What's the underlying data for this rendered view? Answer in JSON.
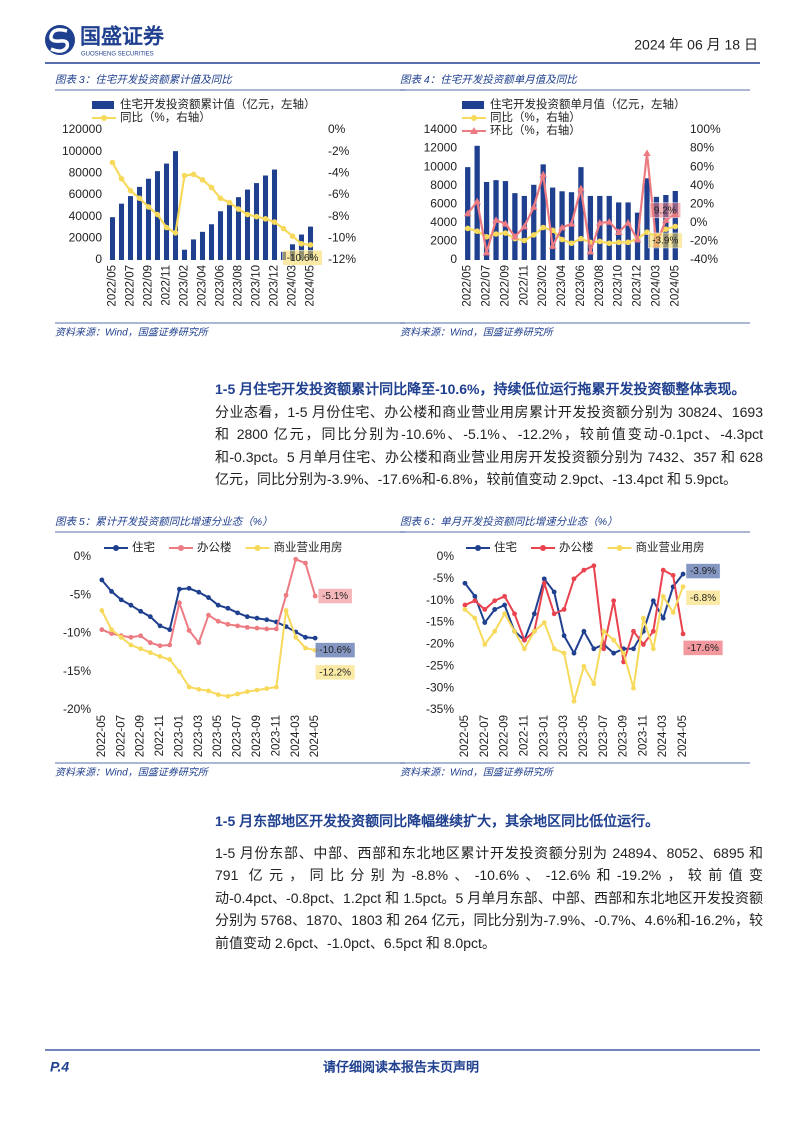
{
  "header": {
    "logo_cn": "国盛证券",
    "logo_en": "GUOSHENG SECURITIES",
    "date": "2024 年 06 月 18 日"
  },
  "chart_data": [
    {
      "type": "combo",
      "caption": "图表 3：住宅开发投资额累计值及同比",
      "source": "资料来源：Wind，国盛证券研究所",
      "legend": "top-left",
      "grid": false,
      "categories": [
        "2022/05",
        null,
        "2022/07",
        null,
        "2022/09",
        null,
        "2022/11",
        null,
        "2023/02",
        null,
        "2023/04",
        null,
        "2023/06",
        null,
        "2023/08",
        null,
        "2023/10",
        null,
        "2023/12",
        null,
        "2024/03",
        null,
        "2024/05"
      ],
      "ylim": [
        0,
        120000
      ],
      "yticks": [
        0,
        20000,
        40000,
        60000,
        80000,
        100000,
        120000
      ],
      "y2lim": [
        -12,
        0
      ],
      "y2ticks": [
        {
          "value": 0,
          "label": "0%"
        },
        {
          "value": -2,
          "label": "-2%"
        },
        {
          "value": -4,
          "label": "-4%"
        },
        {
          "value": -6,
          "label": "-6%"
        },
        {
          "value": -8,
          "label": "-8%"
        },
        {
          "value": -10,
          "label": "-10%"
        },
        {
          "value": -12,
          "label": "-12%"
        }
      ],
      "series": [
        {
          "name": "住宅开发投资额累计值（亿元，左轴）",
          "type": "bar",
          "color": "#1f3f8f",
          "values": [
            39500,
            52000,
            59000,
            67500,
            75000,
            82000,
            89000,
            100500,
            9500,
            19000,
            26000,
            33000,
            45000,
            51000,
            58000,
            65000,
            71000,
            78000,
            83500,
            7500,
            14500,
            23500,
            30824
          ]
        },
        {
          "name": "同比（%，右轴）",
          "type": "line",
          "axis": "y2",
          "marker": "circle",
          "color": "#f7d95c",
          "values": [
            -3.0,
            -4.5,
            -5.6,
            -6.3,
            -7.1,
            -7.8,
            -9.0,
            -9.5,
            -4.2,
            -4.1,
            -4.6,
            -5.3,
            -6.3,
            -6.7,
            -7.3,
            -7.8,
            -8.0,
            -8.2,
            -8.5,
            -9.1,
            -9.8,
            -10.5,
            -10.6
          ],
          "value_labels": [
            null,
            null,
            null,
            null,
            null,
            null,
            null,
            null,
            null,
            null,
            null,
            null,
            null,
            null,
            null,
            null,
            null,
            null,
            null,
            null,
            null,
            null,
            "-10.6%"
          ]
        }
      ]
    },
    {
      "type": "combo",
      "caption": "图表 4：住宅开发投资额单月值及同比",
      "source": "资料来源：Wind，国盛证券研究所",
      "legend": "top-left",
      "grid": false,
      "categories": [
        "2022/05",
        null,
        "2022/07",
        null,
        "2022/09",
        null,
        "2022/11",
        null,
        "2023/02",
        null,
        "2023/04",
        null,
        "2023/06",
        null,
        "2023/08",
        null,
        "2023/10",
        null,
        "2023/12",
        null,
        "2024/03",
        null,
        "2024/05"
      ],
      "ylim": [
        0,
        14000
      ],
      "yticks": [
        0,
        2000,
        4000,
        6000,
        8000,
        10000,
        12000,
        14000
      ],
      "y2lim": [
        -40,
        100
      ],
      "y2ticks": [
        {
          "value": -40,
          "label": "-40%"
        },
        {
          "value": -20,
          "label": "-20%"
        },
        {
          "value": 0,
          "label": "0%"
        },
        {
          "value": 20,
          "label": "20%"
        },
        {
          "value": 40,
          "label": "40%"
        },
        {
          "value": 60,
          "label": "60%"
        },
        {
          "value": 80,
          "label": "80%"
        },
        {
          "value": 100,
          "label": "100%"
        }
      ],
      "series": [
        {
          "name": "住宅开发投资额单月值（亿元，左轴）",
          "type": "bar",
          "color": "#1f3f8f",
          "values": [
            10000,
            12300,
            8400,
            8600,
            8500,
            7200,
            6900,
            8100,
            10300,
            7800,
            7400,
            7300,
            10000,
            6900,
            6900,
            6900,
            6200,
            6200,
            5100,
            8800,
            6800,
            7000,
            7432
          ]
        },
        {
          "name": "同比（%，右轴）",
          "type": "line",
          "axis": "y2",
          "marker": "circle",
          "color": "#f7d95c",
          "values": [
            -6,
            -9,
            -15,
            -12,
            -11,
            -17,
            -19,
            -13,
            -5,
            -8,
            -18,
            -22,
            -17,
            -21,
            -20,
            -22,
            -21,
            -21,
            -17,
            -10,
            -14,
            -6.8,
            -3.9
          ],
          "value_labels": [
            null,
            null,
            null,
            null,
            null,
            null,
            null,
            null,
            null,
            null,
            null,
            null,
            null,
            null,
            null,
            null,
            null,
            null,
            null,
            null,
            null,
            null,
            "-3.9%"
          ]
        },
        {
          "name": "环比（%，右轴）",
          "type": "line",
          "axis": "y2",
          "marker": "triangle",
          "color": "#ec7b82",
          "values": [
            10,
            23,
            -32,
            3,
            -1,
            -15,
            -4,
            17,
            52,
            -25,
            -5,
            -1,
            37,
            -31,
            0,
            1,
            -10,
            0,
            -18,
            75,
            -23,
            3,
            9.2
          ],
          "value_labels": [
            null,
            null,
            null,
            null,
            null,
            null,
            null,
            null,
            null,
            null,
            null,
            null,
            null,
            null,
            null,
            null,
            null,
            null,
            null,
            null,
            null,
            null,
            "9.2%"
          ]
        }
      ]
    },
    {
      "type": "line",
      "caption": "图表 5：累计开发投资额同比增速分业态（%）",
      "source": "资料来源：Wind，国盛证券研究所",
      "legend": "top",
      "grid": false,
      "categories": [
        "2022-05",
        null,
        "2022-07",
        null,
        "2022-09",
        null,
        "2022-11",
        null,
        "2023-01",
        null,
        "2023-03",
        null,
        "2023-05",
        null,
        "2023-07",
        null,
        "2023-09",
        null,
        "2023-11",
        null,
        "2024-03",
        null,
        "2024-05"
      ],
      "ylim": [
        -20,
        0
      ],
      "yticks": [
        {
          "value": 0,
          "label": "0%"
        },
        {
          "value": -5,
          "label": "-5%"
        },
        {
          "value": -10,
          "label": "-10%"
        },
        {
          "value": -15,
          "label": "-15%"
        },
        {
          "value": -20,
          "label": "-20%"
        }
      ],
      "series": [
        {
          "name": "住宅",
          "type": "line",
          "marker": "circle",
          "color": "#1f3f8f",
          "values": [
            -3.0,
            -4.5,
            -5.6,
            -6.3,
            -7.1,
            -7.8,
            -9.0,
            -9.5,
            -4.2,
            -4.1,
            -4.6,
            -5.3,
            -6.3,
            -6.7,
            -7.3,
            -7.8,
            -8.0,
            -8.2,
            -8.5,
            -9.1,
            -9.8,
            -10.5,
            -10.6
          ],
          "value_labels": [
            null,
            null,
            null,
            null,
            null,
            null,
            null,
            null,
            null,
            null,
            null,
            null,
            null,
            null,
            null,
            null,
            null,
            null,
            null,
            null,
            null,
            null,
            "-10.6%"
          ]
        },
        {
          "name": "办公楼",
          "type": "line",
          "marker": "circle",
          "color": "#ec7b82",
          "values": [
            -9.5,
            -10,
            -10.3,
            -10.5,
            -10.3,
            -11.2,
            -11.6,
            -11.5,
            -6.0,
            -9.6,
            -11.2,
            -7.6,
            -8.4,
            -8.8,
            -9.0,
            -9.2,
            -9.3,
            -9.4,
            -9.4,
            -5.0,
            -0.3,
            -0.8,
            -5.1
          ],
          "value_labels": [
            null,
            null,
            null,
            null,
            null,
            null,
            null,
            null,
            null,
            null,
            null,
            null,
            null,
            null,
            null,
            null,
            null,
            null,
            null,
            null,
            null,
            null,
            "-5.1%"
          ]
        },
        {
          "name": "商业营业用房",
          "type": "line",
          "marker": "circle",
          "color": "#f7d95c",
          "values": [
            -7,
            -9.5,
            -10.5,
            -11.5,
            -12,
            -12.5,
            -13,
            -13.4,
            -15,
            -17,
            -17.3,
            -17.5,
            -18,
            -18.2,
            -17.9,
            -17.6,
            -17.4,
            -17.2,
            -17.0,
            -7.0,
            -10.5,
            -11.9,
            -12.2
          ],
          "value_labels": [
            null,
            null,
            null,
            null,
            null,
            null,
            null,
            null,
            null,
            null,
            null,
            null,
            null,
            null,
            null,
            null,
            null,
            null,
            null,
            null,
            null,
            null,
            "-12.2%"
          ]
        }
      ]
    },
    {
      "type": "line",
      "caption": "图表 6：单月开发投资额同比增速分业态（%）",
      "source": "资料来源：Wind，国盛证券研究所",
      "legend": "top",
      "grid": false,
      "categories": [
        "2022-05",
        null,
        "2022-07",
        null,
        "2022-09",
        null,
        "2022-11",
        null,
        "2023-01",
        null,
        "2023-03",
        null,
        "2023-05",
        null,
        "2023-07",
        null,
        "2023-09",
        null,
        "2023-11",
        null,
        "2024-03",
        null,
        "2024-05"
      ],
      "ylim": [
        -35,
        0
      ],
      "yticks": [
        {
          "value": 0,
          "label": "0%"
        },
        {
          "value": -5,
          "label": "-5%"
        },
        {
          "value": -10,
          "label": "-10%"
        },
        {
          "value": -15,
          "label": "-15%"
        },
        {
          "value": -20,
          "label": "-20%"
        },
        {
          "value": -25,
          "label": "-25%"
        },
        {
          "value": -30,
          "label": "-30%"
        },
        {
          "value": -35,
          "label": "-35%"
        }
      ],
      "series": [
        {
          "name": "住宅",
          "type": "line",
          "marker": "circle",
          "color": "#1f3f8f",
          "values": [
            -6,
            -9,
            -15,
            -12,
            -11,
            -17,
            -19,
            -13,
            -5,
            -8,
            -18,
            -22,
            -17,
            -21,
            -20,
            -22,
            -21,
            -21,
            -17,
            -10,
            -14,
            -6.8,
            -3.9
          ],
          "value_labels": [
            null,
            null,
            null,
            null,
            null,
            null,
            null,
            null,
            null,
            null,
            null,
            null,
            null,
            null,
            null,
            null,
            null,
            null,
            null,
            null,
            null,
            null,
            "-3.9%"
          ]
        },
        {
          "name": "办公楼",
          "type": "line",
          "marker": "circle",
          "color": "#e8434f",
          "values": [
            -11,
            -10,
            -12,
            -10,
            -9,
            -13,
            -19,
            -17,
            -6,
            -13,
            -12,
            -5,
            -3,
            -2,
            -21,
            -10,
            -24,
            -17,
            -20,
            -17,
            -3,
            -4.2,
            -17.6
          ],
          "value_labels": [
            null,
            null,
            null,
            null,
            null,
            null,
            null,
            null,
            null,
            null,
            null,
            null,
            null,
            null,
            null,
            null,
            null,
            null,
            null,
            null,
            null,
            null,
            "-17.6%"
          ]
        },
        {
          "name": "商业营业用房",
          "type": "line",
          "marker": "circle",
          "color": "#f7d95c",
          "values": [
            -12,
            -14,
            -20,
            -17,
            -13,
            -17,
            -21,
            -17,
            -15,
            -21,
            -22,
            -33,
            -25,
            -29,
            -17,
            -19,
            -22,
            -30,
            -14,
            -21,
            -9,
            -12.7,
            -6.8
          ],
          "value_labels": [
            null,
            null,
            null,
            null,
            null,
            null,
            null,
            null,
            null,
            null,
            null,
            null,
            null,
            null,
            null,
            null,
            null,
            null,
            null,
            null,
            null,
            null,
            "-6.8%"
          ]
        }
      ]
    }
  ],
  "sections": [
    {
      "heading": "1-5 月住宅开发投资额累计同比降至-10.6%，持续低位运行拖累开发投资额整体表现。",
      "body": "分业态看，1-5 月份住宅、办公楼和商业营业用房累计开发投资额分别为 30824、1693 和 2800 亿元，同比分别为-10.6%、-5.1%、-12.2%，较前值变动-0.1pct、-4.3pct 和-0.3pct。5 月单月住宅、办公楼和商业营业用房开发投资额分别为 7432、357 和 628 亿元，同比分别为-3.9%、-17.6%和-6.8%，较前值变动 2.9pct、-13.4pct 和 5.9pct。"
    },
    {
      "heading": "1-5 月东部地区开发投资额同比降幅继续扩大，其余地区同比低位运行。",
      "body": "1-5 月份东部、中部、西部和东北地区累计开发投资额分别为 24894、8052、6895 和 791 亿元，同比分别为-8.8%、-10.6%、-12.6%和-19.2%，较前值变动-0.4pct、-0.8pct、1.2pct 和 1.5pct。5 月单月东部、中部、西部和东北地区开发投资额分别为 5768、1870、1803 和 264 亿元，同比分别为-7.9%、-0.7%、4.6%和-16.2%，较前值变动 2.6pct、-1.0pct、6.5pct 和 8.0pct。"
    }
  ],
  "footer": {
    "page": "P.4",
    "disclaimer": "请仔细阅读本报告末页声明"
  }
}
